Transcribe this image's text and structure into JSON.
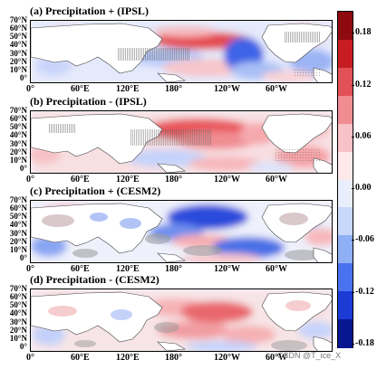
{
  "chart_data": [
    {
      "type": "heatmap",
      "title": "(a) Precipitation + (IPSL)",
      "y_ticks": [
        "70°N",
        "60°N",
        "50°N",
        "40°N",
        "30°N",
        "20°N",
        "10°N",
        "0°"
      ],
      "x_ticks": [
        "0°",
        "60°E",
        "120°E",
        "180°",
        "120°W",
        "60°W"
      ],
      "field": "precipitation anomaly (+) IPSL"
    },
    {
      "type": "heatmap",
      "title": "(b) Precipitation - (IPSL)",
      "y_ticks": [
        "70°N",
        "60°N",
        "50°N",
        "40°N",
        "30°N",
        "20°N",
        "10°N",
        "0°"
      ],
      "x_ticks": [
        "0°",
        "60°E",
        "120°E",
        "180°",
        "120°W",
        "60°W"
      ],
      "field": "precipitation anomaly (-) IPSL"
    },
    {
      "type": "heatmap",
      "title": "(c) Precipitation + (CESM2)",
      "y_ticks": [
        "70°N",
        "60°N",
        "50°N",
        "40°N",
        "30°N",
        "20°N",
        "10°N",
        "0°"
      ],
      "x_ticks": [
        "0°",
        "60°E",
        "120°E",
        "180°",
        "120°W",
        "60°W"
      ],
      "field": "precipitation anomaly (+) CESM2"
    },
    {
      "type": "heatmap",
      "title": "(d) Precipitation - (CESM2)",
      "y_ticks": [
        "70°N",
        "60°N",
        "50°N",
        "40°N",
        "30°N",
        "20°N",
        "10°N",
        "0°"
      ],
      "x_ticks": [
        "0°",
        "60°E",
        "120°E",
        "180°",
        "120°W",
        "60°W"
      ],
      "field": "precipitation anomaly (-) CESM2"
    }
  ],
  "colorbar": {
    "ticks": [
      "0.18",
      "0.12",
      "0.06",
      "0.00",
      "-0.06",
      "-0.12",
      "-0.18"
    ],
    "range": [
      -0.18,
      0.18
    ],
    "colors": [
      "#08168f",
      "#1c3ad6",
      "#4a72ee",
      "#8fb0f5",
      "#c8d8fb",
      "#e9eefc",
      "#fde9ea",
      "#f9c2c6",
      "#f08d92",
      "#e25157",
      "#c71d22",
      "#8e0a10"
    ]
  },
  "watermark": "CSDN @T_ice_X"
}
